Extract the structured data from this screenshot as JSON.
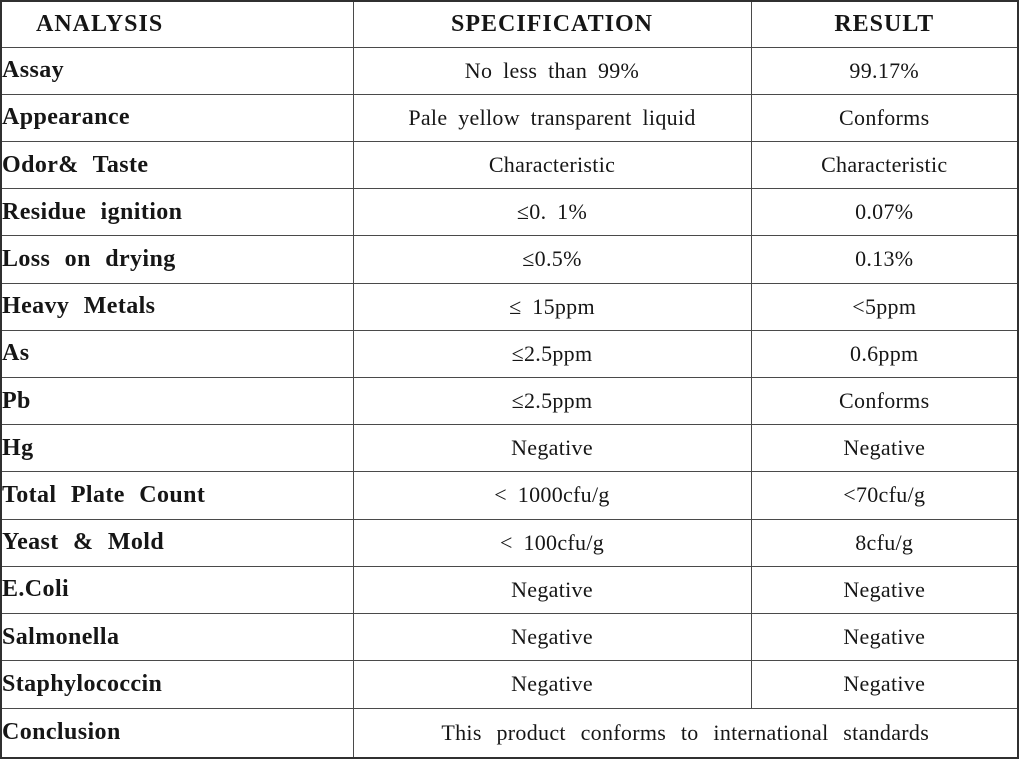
{
  "document": {
    "type": "certificate-of-analysis-table",
    "colors": {
      "background": "#ffffff",
      "text": "#161616",
      "border": "#4a4a4a",
      "outer_border": "#303030"
    },
    "table": {
      "columns": [
        {
          "key": "analysis",
          "label": "ANALYSIS"
        },
        {
          "key": "specification",
          "label": "SPECIFICATION"
        },
        {
          "key": "result",
          "label": "RESULT"
        }
      ],
      "rows": [
        {
          "analysis": "Assay",
          "specification": "No less than 99%",
          "result": "99.17%"
        },
        {
          "analysis": "Appearance",
          "specification": "Pale yellow transparent liquid",
          "result": "Conforms"
        },
        {
          "analysis": "Odor& Taste",
          "specification": "Characteristic",
          "result": "Characteristic"
        },
        {
          "analysis": "Residue ignition",
          "specification": "≤0. 1%",
          "result": "0.07%"
        },
        {
          "analysis": "Loss on drying",
          "specification": "≤0.5%",
          "result": "0.13%"
        },
        {
          "analysis": "Heavy Metals",
          "specification": "≤ 15ppm",
          "result": "<5ppm"
        },
        {
          "analysis": "As",
          "specification": "≤2.5ppm",
          "result": "0.6ppm"
        },
        {
          "analysis": "Pb",
          "specification": "≤2.5ppm",
          "result": "Conforms"
        },
        {
          "analysis": "Hg",
          "specification": "Negative",
          "result": "Negative"
        },
        {
          "analysis": "Total Plate Count",
          "specification": "< 1000cfu/g",
          "result": "<70cfu/g"
        },
        {
          "analysis": "Yeast & Mold",
          "specification": "< 100cfu/g",
          "result": "8cfu/g"
        },
        {
          "analysis": "E.Coli",
          "specification": "Negative",
          "result": "Negative"
        },
        {
          "analysis": "Salmonella",
          "specification": "Negative",
          "result": "Negative"
        },
        {
          "analysis": "Staphylococcin",
          "specification": "Negative",
          "result": "Negative"
        }
      ],
      "conclusion": {
        "label": "Conclusion",
        "text": "This product conforms to international standards"
      }
    }
  }
}
